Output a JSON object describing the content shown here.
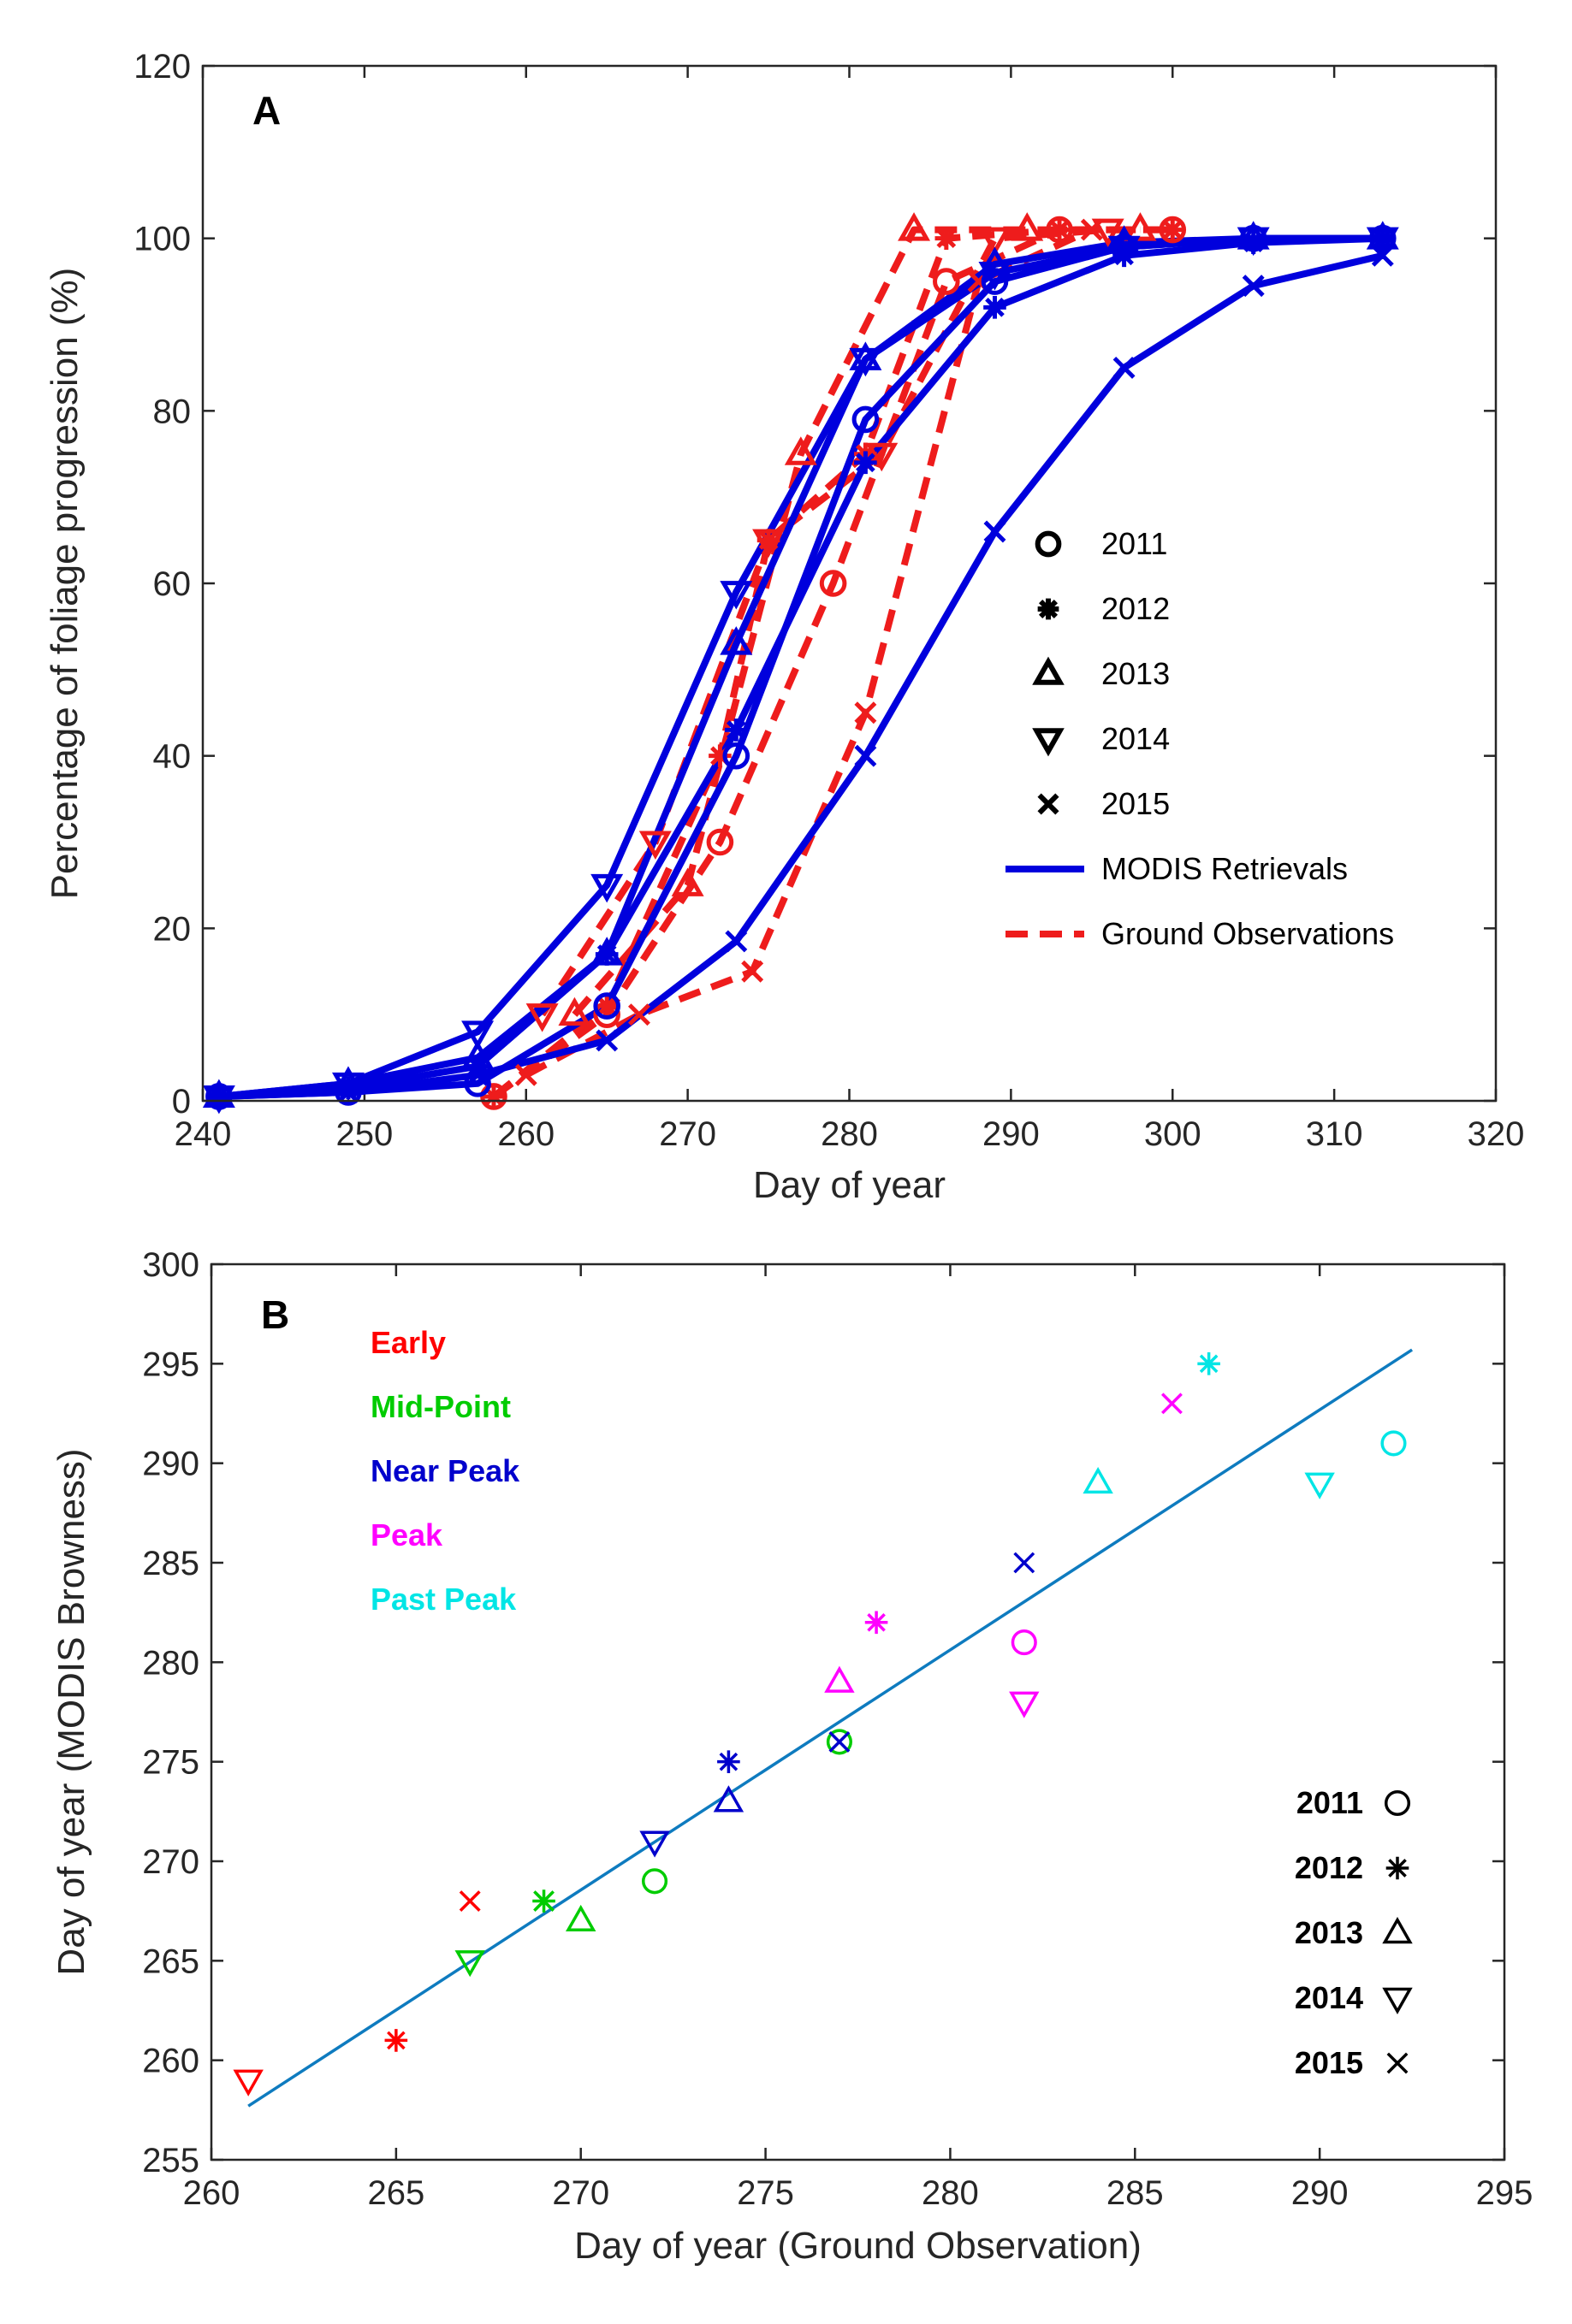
{
  "colors": {
    "modis": "#0000dd",
    "ground": "#ee1c1c",
    "fit": "#0e7bbf",
    "early": "#ff0000",
    "mid": "#00cc00",
    "near": "#0000cc",
    "peak": "#ff00ff",
    "past": "#00e5e5",
    "axis": "#262626"
  },
  "chart_data": [
    {
      "type": "line",
      "panel": "A",
      "xlabel": "Day of year",
      "ylabel": "Percentage of foliage progression (%)",
      "xlim": [
        240,
        320
      ],
      "ylim": [
        0,
        120
      ],
      "xticks": [
        240,
        250,
        260,
        270,
        280,
        290,
        300,
        310,
        320
      ],
      "yticks": [
        0,
        20,
        40,
        60,
        80,
        100,
        120
      ],
      "legend": {
        "position": "right-center",
        "entries": [
          {
            "label": "2011",
            "marker": "circle"
          },
          {
            "label": "2012",
            "marker": "asterisk"
          },
          {
            "label": "2013",
            "marker": "triangle-up"
          },
          {
            "label": "2014",
            "marker": "triangle-down"
          },
          {
            "label": "2015",
            "marker": "x"
          },
          {
            "label": "MODIS Retrievals",
            "line": "solid"
          },
          {
            "label": "Ground Observations",
            "line": "dashed"
          }
        ]
      },
      "series": [
        {
          "name": "MODIS Retrievals 2011",
          "kind": "modis",
          "marker": "circle",
          "x": [
            241,
            249,
            257,
            265,
            273,
            281,
            289,
            297,
            305,
            313
          ],
          "y": [
            0.5,
            1,
            2,
            11,
            40,
            79,
            95,
            99,
            100,
            100
          ]
        },
        {
          "name": "MODIS Retrievals 2012",
          "kind": "modis",
          "marker": "asterisk",
          "x": [
            241,
            249,
            257,
            265,
            273,
            281,
            289,
            297,
            305,
            313
          ],
          "y": [
            0.5,
            1.5,
            4,
            17,
            43,
            74,
            92,
            98,
            99.5,
            100
          ]
        },
        {
          "name": "MODIS Retrievals 2013",
          "kind": "modis",
          "marker": "triangle-up",
          "x": [
            241,
            249,
            257,
            265,
            273,
            281,
            289,
            297,
            305,
            313
          ],
          "y": [
            0.5,
            2,
            5,
            17,
            53,
            86,
            97,
            99.5,
            100,
            100
          ]
        },
        {
          "name": "MODIS Retrievals 2014",
          "kind": "modis",
          "marker": "triangle-down",
          "x": [
            241,
            249,
            257,
            265,
            273,
            281,
            289,
            297,
            305,
            313
          ],
          "y": [
            0.5,
            2,
            8,
            25,
            59,
            86,
            96,
            99,
            100,
            100
          ]
        },
        {
          "name": "MODIS Retrievals 2015",
          "kind": "modis",
          "marker": "x",
          "x": [
            241,
            249,
            257,
            265,
            273,
            281,
            289,
            297,
            305,
            313
          ],
          "y": [
            0.5,
            1,
            3,
            7,
            18.5,
            40,
            66,
            85,
            94.5,
            98
          ]
        },
        {
          "name": "Ground Observations 2011",
          "kind": "ground",
          "marker": "circle",
          "x": [
            258,
            265,
            272,
            279,
            286,
            293,
            300
          ],
          "y": [
            0.5,
            10,
            30,
            60,
            95,
            101,
            101
          ]
        },
        {
          "name": "Ground Observations 2012",
          "kind": "ground",
          "marker": "asterisk",
          "x": [
            258,
            265,
            272,
            275,
            281,
            286,
            293,
            300
          ],
          "y": [
            0.5,
            11,
            40,
            65,
            75,
            100,
            101,
            101
          ]
        },
        {
          "name": "Ground Observations 2013",
          "kind": "ground",
          "marker": "triangle-up",
          "x": [
            263,
            270,
            277,
            284,
            291,
            298
          ],
          "y": [
            10,
            25,
            75,
            101,
            101,
            101
          ]
        },
        {
          "name": "Ground Observations 2014",
          "kind": "ground",
          "marker": "triangle-down",
          "x": [
            261,
            268,
            275,
            282,
            289,
            296
          ],
          "y": [
            10,
            30,
            65,
            75,
            100,
            101
          ]
        },
        {
          "name": "Ground Observations 2015",
          "kind": "ground",
          "marker": "x",
          "x": [
            260,
            267,
            274,
            281,
            288,
            295
          ],
          "y": [
            3,
            10,
            15,
            45,
            95,
            101
          ]
        }
      ]
    },
    {
      "type": "scatter",
      "panel": "B",
      "xlabel": "Day of year (Ground Observation)",
      "ylabel": "Day of year (MODIS Browness)",
      "xlim": [
        260,
        295
      ],
      "ylim": [
        255,
        300
      ],
      "xticks": [
        260,
        265,
        270,
        275,
        280,
        285,
        290,
        295
      ],
      "yticks": [
        255,
        260,
        265,
        270,
        275,
        280,
        285,
        290,
        295,
        300
      ],
      "fit_line": {
        "x": [
          261,
          292.5
        ],
        "y": [
          257.7,
          295.7
        ]
      },
      "categories": [
        {
          "key": "early",
          "label": "Early"
        },
        {
          "key": "mid",
          "label": "Mid-Point"
        },
        {
          "key": "near",
          "label": "Near Peak"
        },
        {
          "key": "peak",
          "label": "Peak"
        },
        {
          "key": "past",
          "label": "Past Peak"
        }
      ],
      "year_legend": [
        {
          "label": "2011",
          "marker": "circle"
        },
        {
          "label": "2012",
          "marker": "asterisk"
        },
        {
          "label": "2013",
          "marker": "triangle-up"
        },
        {
          "label": "2014",
          "marker": "triangle-down"
        },
        {
          "label": "2015",
          "marker": "x"
        }
      ],
      "points": [
        {
          "category": "early",
          "year": "2014",
          "marker": "triangle-down",
          "x": 261,
          "y": 259
        },
        {
          "category": "early",
          "year": "2012",
          "marker": "asterisk",
          "x": 265,
          "y": 261
        },
        {
          "category": "early",
          "year": "2015",
          "marker": "x",
          "x": 267,
          "y": 268
        },
        {
          "category": "mid",
          "year": "2014",
          "marker": "triangle-down",
          "x": 267,
          "y": 265
        },
        {
          "category": "mid",
          "year": "2012",
          "marker": "asterisk",
          "x": 269,
          "y": 268
        },
        {
          "category": "mid",
          "year": "2015",
          "marker": "x",
          "x": 269,
          "y": 268
        },
        {
          "category": "mid",
          "year": "2013",
          "marker": "triangle-up",
          "x": 270,
          "y": 267
        },
        {
          "category": "mid",
          "year": "2011",
          "marker": "circle",
          "x": 272,
          "y": 269
        },
        {
          "category": "mid",
          "year": "2011",
          "marker": "circle",
          "x": 277,
          "y": 276
        },
        {
          "category": "near",
          "year": "2014",
          "marker": "triangle-down",
          "x": 272,
          "y": 271
        },
        {
          "category": "near",
          "year": "2012",
          "marker": "asterisk",
          "x": 274,
          "y": 275
        },
        {
          "category": "near",
          "year": "2013",
          "marker": "triangle-up",
          "x": 274,
          "y": 273
        },
        {
          "category": "near",
          "year": "2015",
          "marker": "x",
          "x": 277,
          "y": 276
        },
        {
          "category": "near",
          "year": "2015",
          "marker": "x",
          "x": 282,
          "y": 285
        },
        {
          "category": "peak",
          "year": "2013",
          "marker": "triangle-up",
          "x": 277,
          "y": 279
        },
        {
          "category": "peak",
          "year": "2012",
          "marker": "asterisk",
          "x": 278,
          "y": 282
        },
        {
          "category": "peak",
          "year": "2011",
          "marker": "circle",
          "x": 282,
          "y": 281
        },
        {
          "category": "peak",
          "year": "2014",
          "marker": "triangle-down",
          "x": 282,
          "y": 278
        },
        {
          "category": "peak",
          "year": "2015",
          "marker": "x",
          "x": 286,
          "y": 293
        },
        {
          "category": "past",
          "year": "2013",
          "marker": "triangle-up",
          "x": 284,
          "y": 289
        },
        {
          "category": "past",
          "year": "2012",
          "marker": "asterisk",
          "x": 287,
          "y": 295
        },
        {
          "category": "past",
          "year": "2014",
          "marker": "triangle-down",
          "x": 290,
          "y": 289
        },
        {
          "category": "past",
          "year": "2011",
          "marker": "circle",
          "x": 292,
          "y": 291
        }
      ]
    }
  ]
}
